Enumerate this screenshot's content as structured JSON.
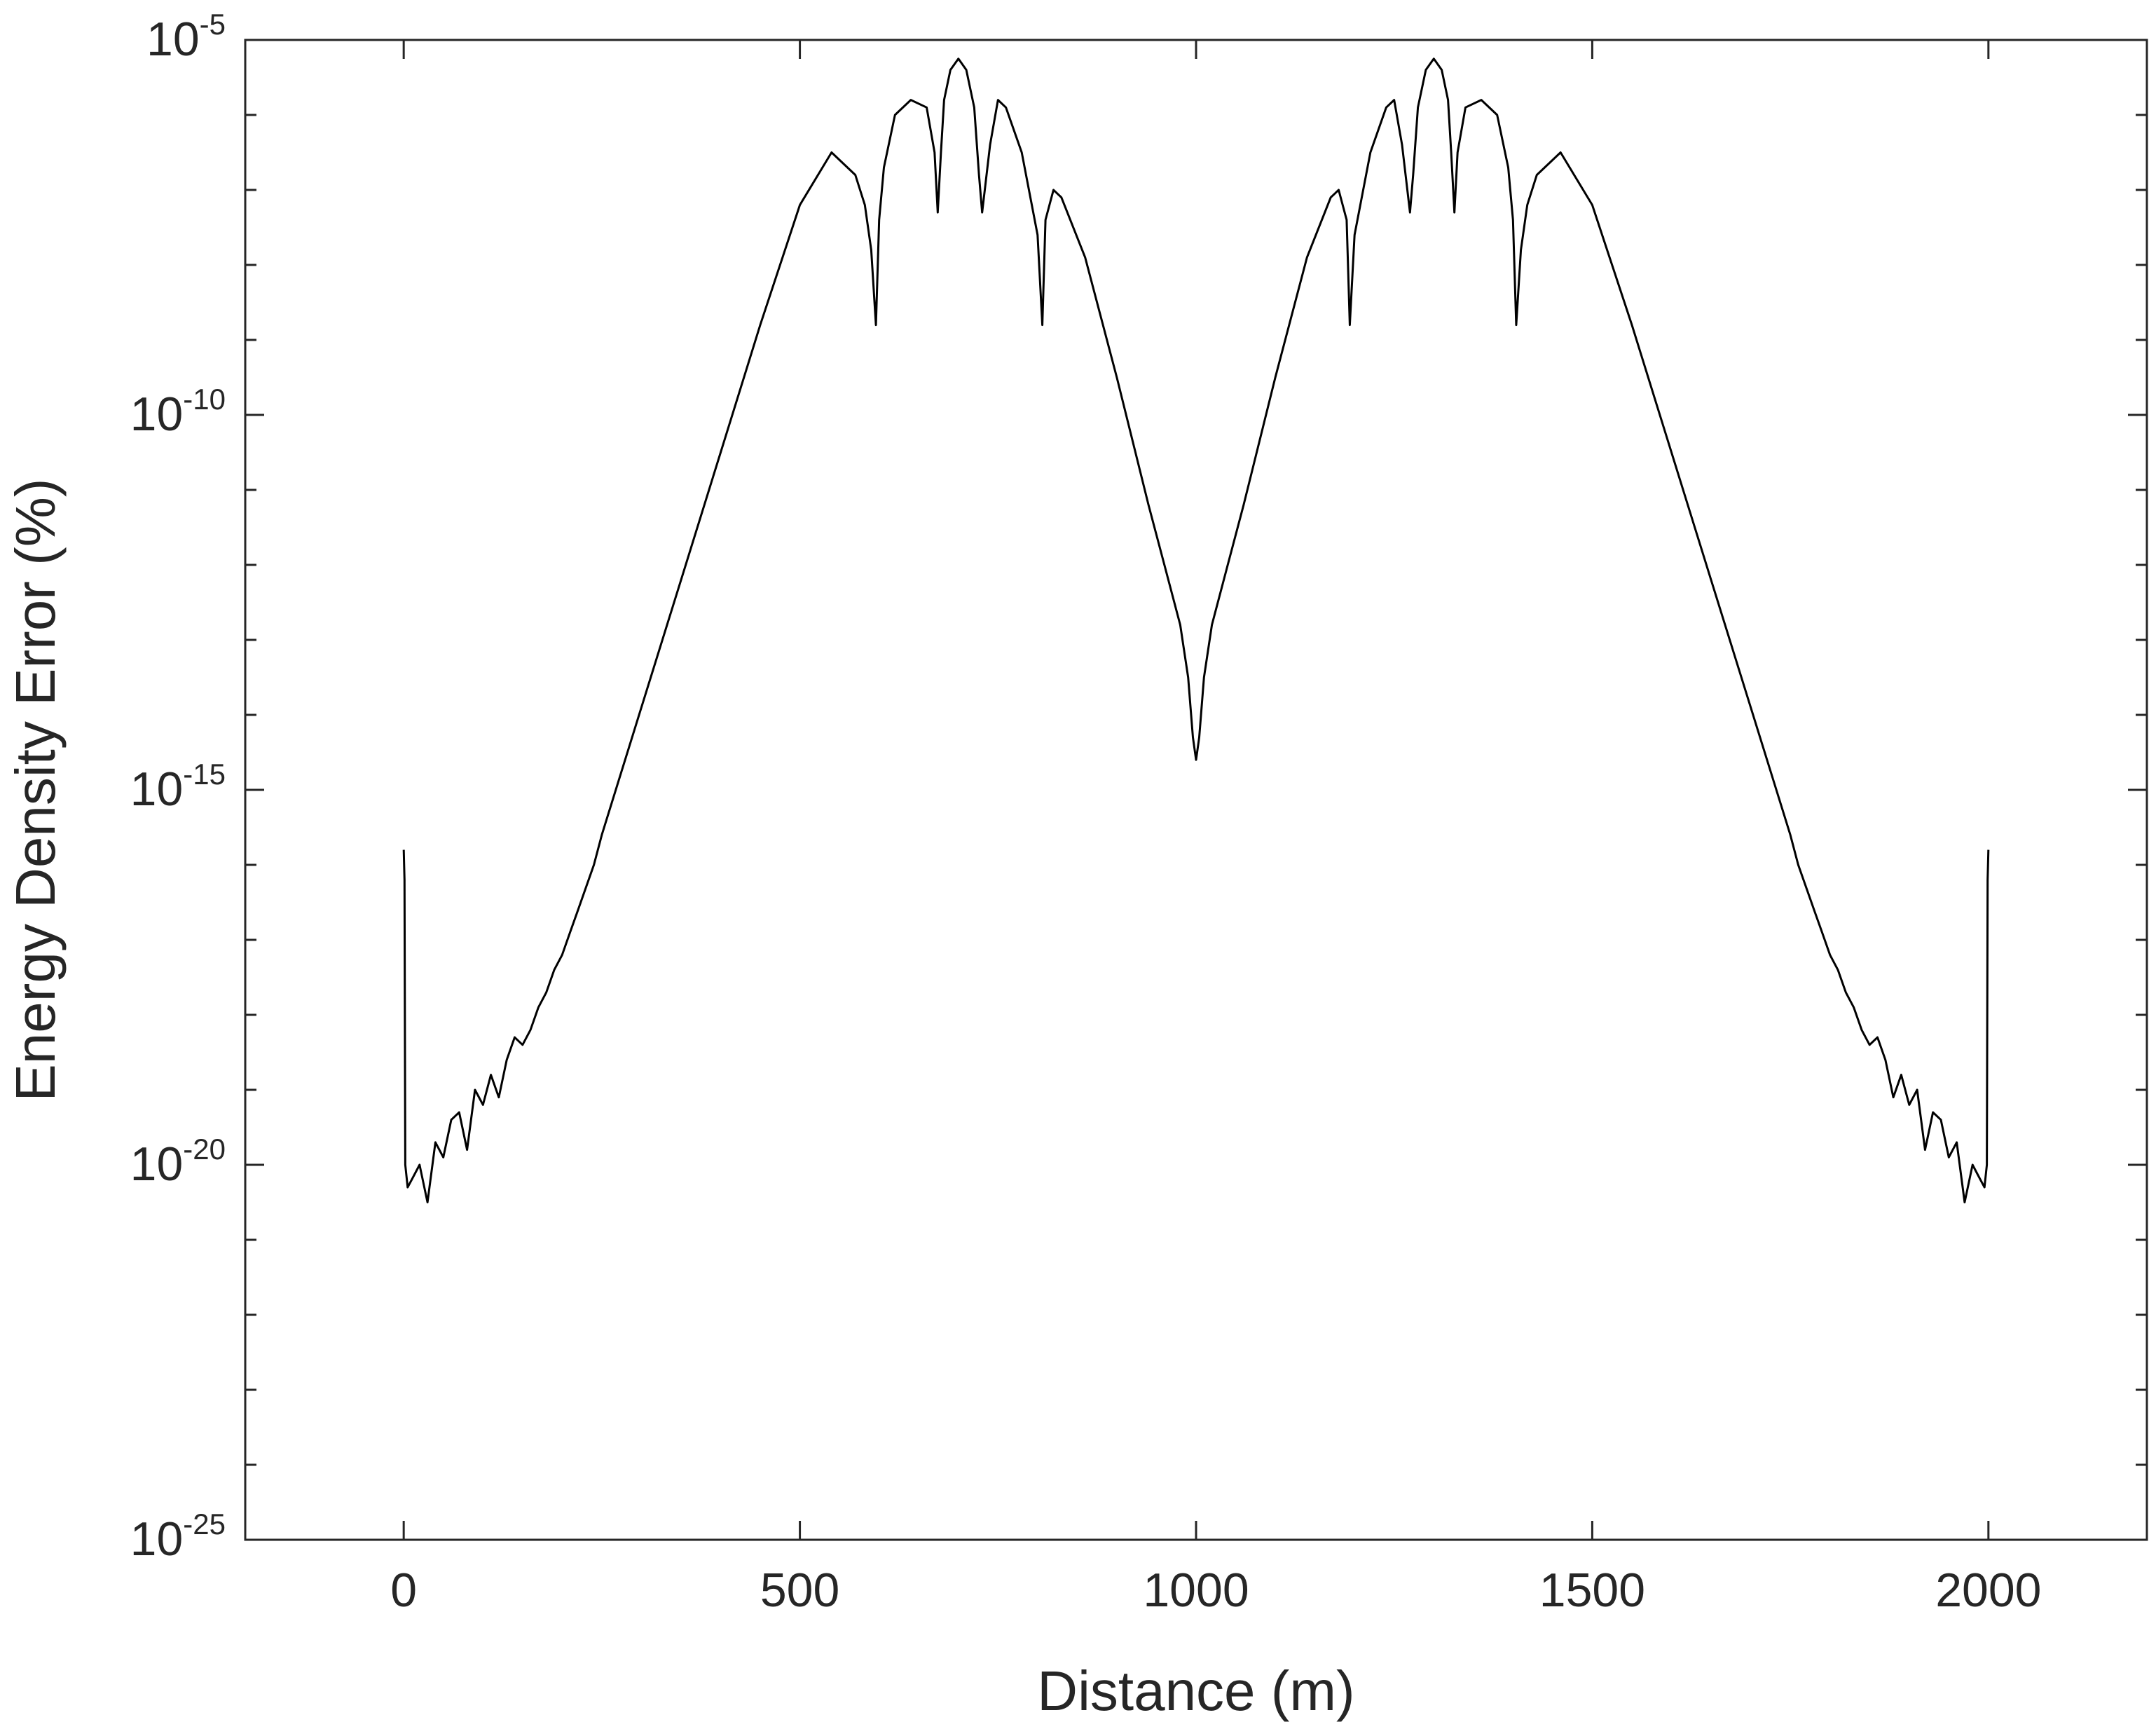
{
  "chart_data": {
    "type": "line",
    "title": "",
    "xlabel": "Distance (m)",
    "ylabel": "Energy Density Error (%)",
    "xlim": [
      -200,
      2200
    ],
    "ylim_exponent": [
      -25,
      -5
    ],
    "yscale": "log",
    "grid": false,
    "legend": "none",
    "line_color": "#000000",
    "axis_color": "#262626",
    "x_ticks": [
      0,
      500,
      1000,
      1500,
      2000
    ],
    "x_tick_labels": [
      "0",
      "500",
      "1000",
      "1500",
      "2000"
    ],
    "y_ticks_exponent": [
      -25,
      -20,
      -15,
      -10,
      -5
    ],
    "y_tick_labels": [
      {
        "base": "10",
        "exp": "-25"
      },
      {
        "base": "10",
        "exp": "-20"
      },
      {
        "base": "10",
        "exp": "-15"
      },
      {
        "base": "10",
        "exp": "-10"
      },
      {
        "base": "10",
        "exp": "-5"
      }
    ],
    "series": [
      {
        "values_note": "log10 of energy density error (%) vs distance (m); curve is symmetric about 1000 m",
        "x": [
          0,
          1,
          2,
          5,
          10,
          20,
          30,
          40,
          50,
          60,
          70,
          80,
          90,
          100,
          110,
          120,
          130,
          140,
          150,
          160,
          170,
          180,
          190,
          200,
          210,
          220,
          230,
          240,
          250,
          300,
          350,
          400,
          450,
          500,
          540,
          570,
          582,
          590,
          596,
          600,
          606,
          620,
          640,
          660,
          670,
          674,
          678,
          682,
          690,
          700,
          710,
          720,
          726,
          730,
          740,
          750,
          760,
          780,
          800,
          806,
          810,
          820,
          830,
          860,
          900,
          940,
          960,
          980,
          990,
          996,
          1000
        ],
        "log10y": [
          -15.8,
          -16.2,
          -20.0,
          -20.3,
          -20.2,
          -20.0,
          -20.5,
          -19.7,
          -19.9,
          -19.4,
          -19.3,
          -19.8,
          -19.0,
          -19.2,
          -18.8,
          -19.1,
          -18.6,
          -18.3,
          -18.4,
          -18.2,
          -17.9,
          -17.7,
          -17.4,
          -17.2,
          -16.9,
          -16.6,
          -16.3,
          -16.0,
          -15.6,
          -13.9,
          -12.2,
          -10.5,
          -8.8,
          -7.2,
          -6.5,
          -6.8,
          -7.2,
          -7.8,
          -8.8,
          -7.4,
          -6.7,
          -6.0,
          -5.8,
          -5.9,
          -6.5,
          -7.3,
          -6.5,
          -5.8,
          -5.4,
          -5.25,
          -5.4,
          -5.9,
          -6.8,
          -7.3,
          -6.4,
          -5.8,
          -5.9,
          -6.5,
          -7.6,
          -8.8,
          -7.4,
          -7.0,
          -7.1,
          -7.9,
          -9.5,
          -11.2,
          -12.0,
          -12.8,
          -13.5,
          -14.3,
          -14.6
        ]
      }
    ]
  }
}
